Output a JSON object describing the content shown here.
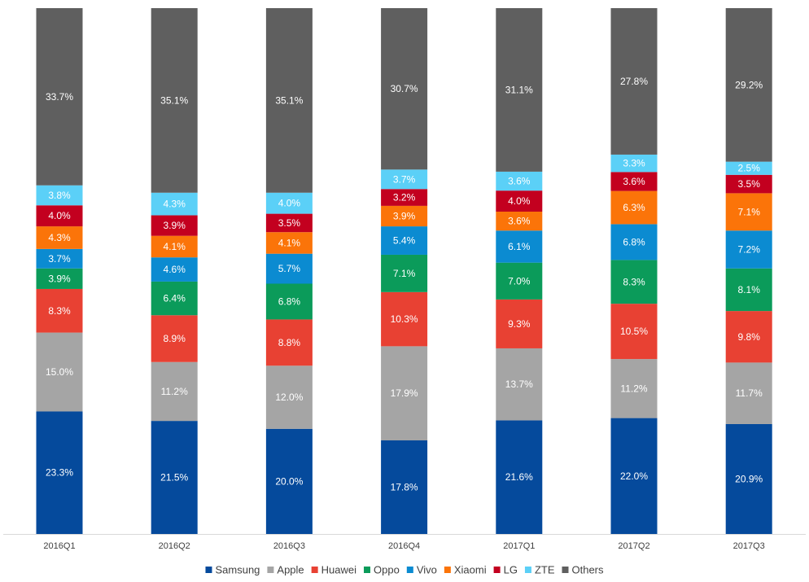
{
  "chart_data": {
    "type": "bar",
    "stacked": true,
    "title": "",
    "xlabel": "",
    "ylabel": "",
    "ylim": [
      0,
      100
    ],
    "grid": false,
    "legend_position": "bottom",
    "categories": [
      "2016Q1",
      "2016Q2",
      "2016Q3",
      "2016Q4",
      "2017Q1",
      "2017Q2",
      "2017Q3"
    ],
    "series": [
      {
        "name": "Samsung",
        "color": "#054a9c",
        "values": [
          23.3,
          21.5,
          20.0,
          17.8,
          21.6,
          22.0,
          20.9
        ],
        "labels": [
          "23.3%",
          "21.5%",
          "20.0%",
          "17.8%",
          "21.6%",
          "22.0%",
          "20.9%"
        ]
      },
      {
        "name": "Apple",
        "color": "#a5a5a5",
        "values": [
          15.0,
          11.2,
          12.0,
          17.9,
          13.7,
          11.2,
          11.7
        ],
        "labels": [
          "15.0%",
          "11.2%",
          "12.0%",
          "17.9%",
          "13.7%",
          "11.2%",
          "11.7%"
        ]
      },
      {
        "name": "Huawei",
        "color": "#e84133",
        "values": [
          8.3,
          8.9,
          8.8,
          10.3,
          9.3,
          10.5,
          9.8
        ],
        "labels": [
          "8.3%",
          "8.9%",
          "8.8%",
          "10.3%",
          "9.3%",
          "10.5%",
          "9.8%"
        ]
      },
      {
        "name": "Oppo",
        "color": "#0b9b5a",
        "values": [
          3.9,
          6.4,
          6.8,
          7.1,
          7.0,
          8.3,
          8.1
        ],
        "labels": [
          "3.9%",
          "6.4%",
          "6.8%",
          "7.1%",
          "7.0%",
          "8.3%",
          "8.1%"
        ]
      },
      {
        "name": "Vivo",
        "color": "#0b8bd1",
        "values": [
          3.7,
          4.6,
          5.7,
          5.4,
          6.1,
          6.8,
          7.2
        ],
        "labels": [
          "3.7%",
          "4.6%",
          "5.7%",
          "5.4%",
          "6.1%",
          "6.8%",
          "7.2%"
        ]
      },
      {
        "name": "Xiaomi",
        "color": "#fb7409",
        "values": [
          4.3,
          4.1,
          4.1,
          3.9,
          3.6,
          6.3,
          7.1
        ],
        "labels": [
          "4.3%",
          "4.1%",
          "4.1%",
          "3.9%",
          "3.6%",
          "6.3%",
          "7.1%"
        ]
      },
      {
        "name": "LG",
        "color": "#c3001f",
        "values": [
          4.0,
          3.9,
          3.5,
          3.2,
          4.0,
          3.6,
          3.5
        ],
        "labels": [
          "4.0%",
          "3.9%",
          "3.5%",
          "3.2%",
          "4.0%",
          "3.6%",
          "3.5%"
        ]
      },
      {
        "name": "ZTE",
        "color": "#5bd0f7",
        "values": [
          3.8,
          4.3,
          4.0,
          3.7,
          3.6,
          3.3,
          2.5
        ],
        "labels": [
          "3.8%",
          "4.3%",
          "4.0%",
          "3.7%",
          "3.6%",
          "3.3%",
          "2.5%"
        ]
      },
      {
        "name": "Others",
        "color": "#5f5f5f",
        "values": [
          33.7,
          35.1,
          35.1,
          30.7,
          31.1,
          27.8,
          29.2
        ],
        "labels": [
          "33.7%",
          "35.1%",
          "35.1%",
          "30.7%",
          "31.1%",
          "27.8%",
          "29.2%"
        ]
      }
    ]
  }
}
